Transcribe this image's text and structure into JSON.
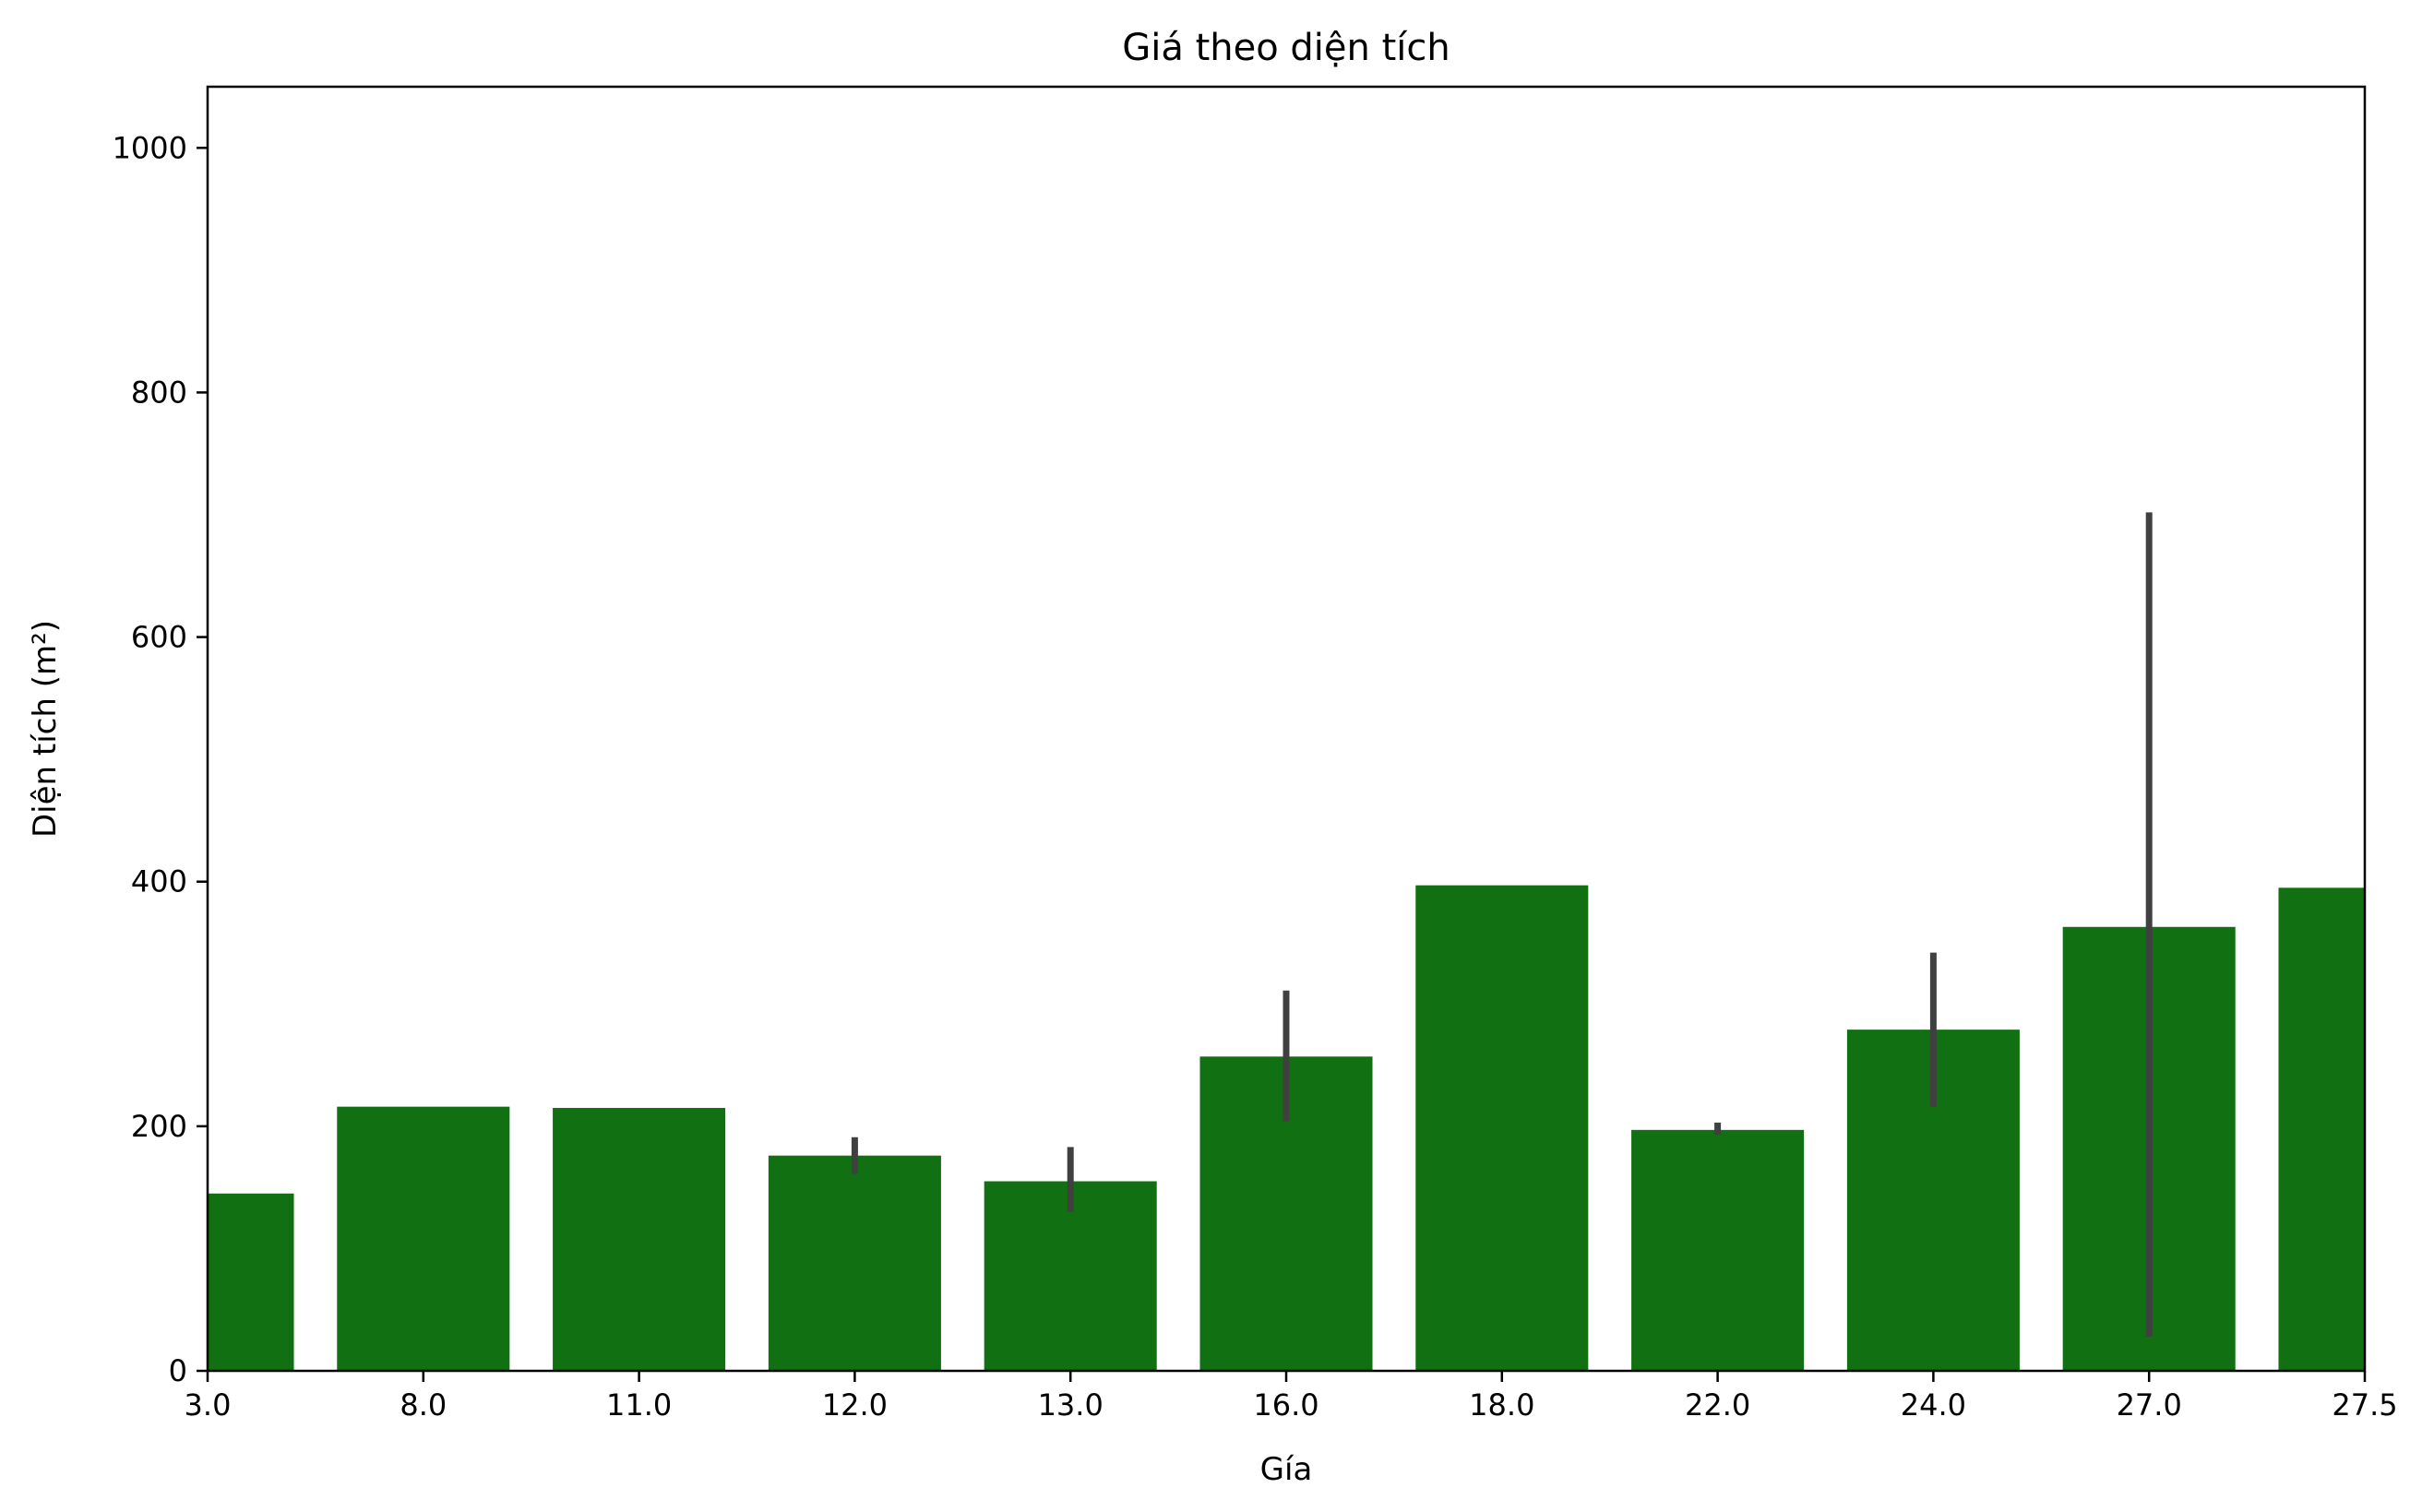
{
  "chart_data": {
    "type": "bar",
    "title": "Giá theo diện tích",
    "xlabel": "Gía",
    "ylabel": "Diện tích (m²)",
    "categories": [
      "3.0",
      "8.0",
      "11.0",
      "12.0",
      "13.0",
      "16.0",
      "18.0",
      "22.0",
      "24.0",
      "27.0",
      "27.5"
    ],
    "values": [
      145,
      216,
      215,
      176,
      155,
      257,
      397,
      197,
      279,
      363,
      395
    ],
    "error_bars": [
      null,
      null,
      null,
      [
        161,
        191
      ],
      [
        130,
        183
      ],
      [
        204,
        311
      ],
      null,
      [
        193,
        203
      ],
      [
        216,
        342
      ],
      [
        28,
        702
      ],
      null
    ],
    "yticks": [
      0,
      200,
      400,
      600,
      800,
      1000
    ],
    "ytick_labels": [
      "0",
      "200",
      "400",
      "600",
      "800",
      "1000"
    ],
    "ylim": [
      0,
      1050
    ],
    "grid": false,
    "colors": {
      "bar": "#117011",
      "error": "#404040",
      "axis": "#000000"
    }
  }
}
